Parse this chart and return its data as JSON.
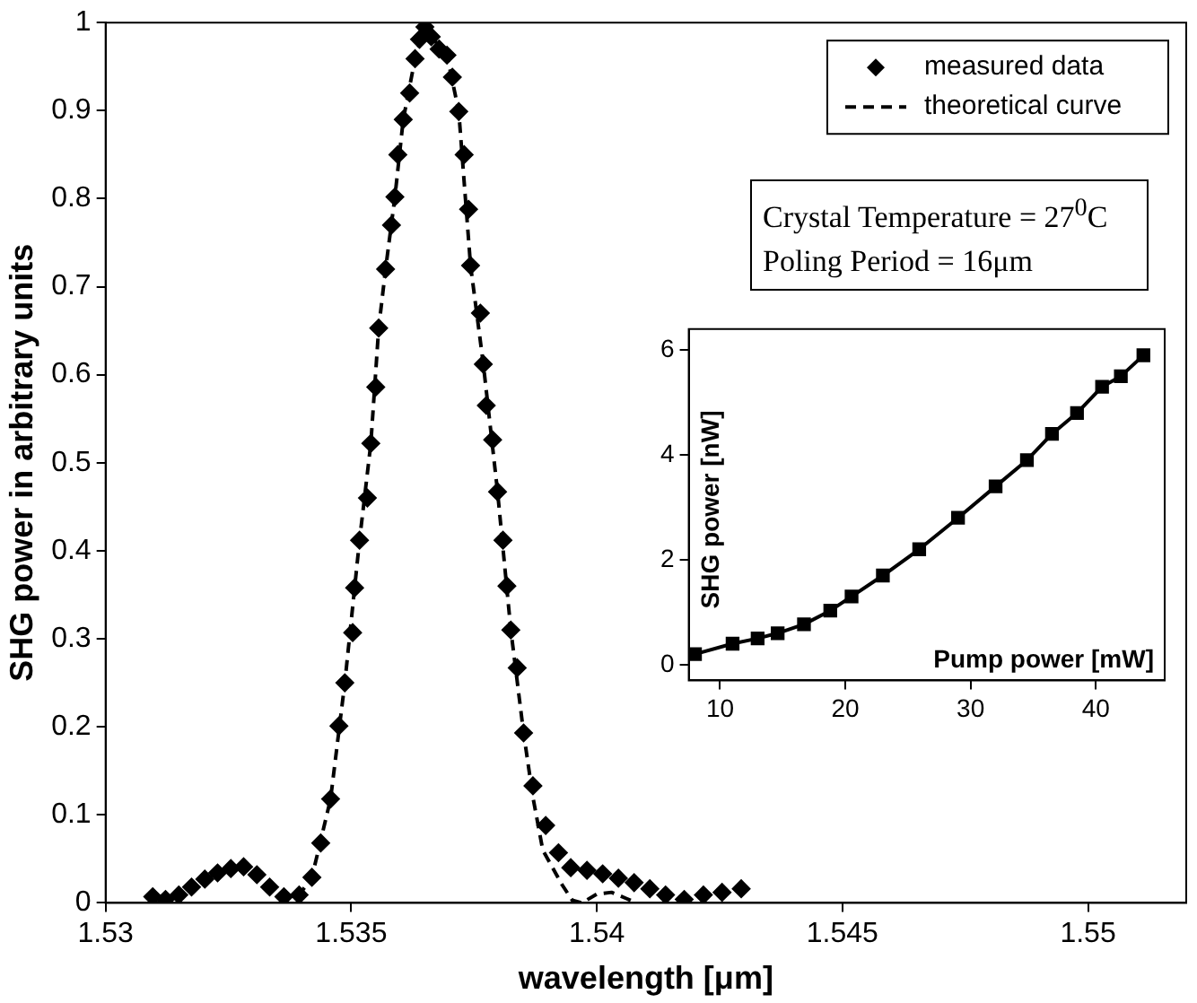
{
  "chart_data": [
    {
      "type": "line",
      "xlabel": "wavelength [μm]",
      "ylabel": "SHG power in arbitrary units",
      "xlim": [
        1.53,
        1.552
      ],
      "ylim": [
        0,
        1
      ],
      "xticks": [
        1.53,
        1.535,
        1.54,
        1.545,
        1.55
      ],
      "yticks": [
        0,
        0.1,
        0.2,
        0.3,
        0.4,
        0.5,
        0.6,
        0.7,
        0.8,
        0.9,
        1
      ],
      "grid": false,
      "legend": "top right",
      "annotations": [
        "Crystal Temperature = 27$^{0}$C",
        "Poling Period = 16μm"
      ],
      "series": [
        {
          "name": "measured data",
          "type": "scatter",
          "marker": "diamond",
          "color": "#000000",
          "x": [
            1.53096,
            1.53122,
            1.53149,
            1.53175,
            1.53202,
            1.53228,
            1.53255,
            1.53281,
            1.53308,
            1.53334,
            1.53363,
            1.53394,
            1.5342,
            1.53438,
            1.53458,
            1.53475,
            1.53487,
            1.53503,
            1.53507,
            1.53517,
            1.53533,
            1.5354,
            1.5355,
            1.53556,
            1.5357,
            1.53582,
            1.53589,
            1.53595,
            1.53606,
            1.53619,
            1.5363,
            1.53639,
            1.5365,
            1.53663,
            1.53679,
            1.53695,
            1.53706,
            1.53719,
            1.5373,
            1.53739,
            1.53743,
            1.53763,
            1.53769,
            1.53775,
            1.53788,
            1.53798,
            1.53809,
            1.53817,
            1.53825,
            1.53838,
            1.53851,
            1.5387,
            1.53896,
            1.53922,
            1.53947,
            1.5398,
            1.54012,
            1.54044,
            1.54076,
            1.54108,
            1.5414,
            1.54178,
            1.54217,
            1.54255,
            1.54294
          ],
          "values": [
            0.007,
            0.004,
            0.009,
            0.018,
            0.027,
            0.034,
            0.039,
            0.041,
            0.032,
            0.018,
            0.007,
            0.009,
            0.029,
            0.068,
            0.118,
            0.201,
            0.25,
            0.307,
            0.358,
            0.412,
            0.46,
            0.522,
            0.586,
            0.653,
            0.72,
            0.77,
            0.802,
            0.85,
            0.89,
            0.92,
            0.959,
            0.981,
            0.995,
            0.984,
            0.97,
            0.963,
            0.938,
            0.899,
            0.85,
            0.788,
            0.724,
            0.67,
            0.612,
            0.565,
            0.526,
            0.467,
            0.412,
            0.36,
            0.31,
            0.267,
            0.193,
            0.133,
            0.088,
            0.057,
            0.04,
            0.037,
            0.033,
            0.028,
            0.023,
            0.016,
            0.009,
            0.004,
            0.009,
            0.012,
            0.016
          ]
        },
        {
          "name": "theoretical curve",
          "type": "line",
          "line_style": "dashed",
          "marker": "none",
          "color": "#000000",
          "x": [
            1.53096,
            1.53149,
            1.53202,
            1.53255,
            1.53281,
            1.53308,
            1.53334,
            1.53363,
            1.53394,
            1.5342,
            1.53458,
            1.53487,
            1.53517,
            1.5354,
            1.53556,
            1.5357,
            1.53589,
            1.53606,
            1.5363,
            1.5365,
            1.53663,
            1.53695,
            1.53719,
            1.53743,
            1.53769,
            1.53798,
            1.53825,
            1.53851,
            1.5387,
            1.5389,
            1.5393,
            1.5395,
            1.5397,
            1.54,
            1.5403,
            1.5406,
            1.5408
          ],
          "values": [
            0.007,
            0.009,
            0.027,
            0.039,
            0.041,
            0.032,
            0.018,
            0.007,
            0.009,
            0.029,
            0.118,
            0.25,
            0.412,
            0.522,
            0.653,
            0.72,
            0.802,
            0.89,
            0.959,
            0.995,
            0.984,
            0.963,
            0.899,
            0.724,
            0.612,
            0.467,
            0.31,
            0.193,
            0.12,
            0.06,
            0.02,
            0.003,
            0,
            0.01,
            0.012,
            0.005,
            0
          ]
        }
      ]
    },
    {
      "type": "line",
      "xlabel": "Pump power [mW]",
      "ylabel": "SHG power [nW]",
      "xlim": [
        7.5,
        45.5
      ],
      "ylim": [
        -0.3,
        6.4
      ],
      "xticks": [
        10,
        20,
        30,
        40
      ],
      "yticks": [
        0,
        2,
        4,
        6
      ],
      "grid": false,
      "legend": false,
      "marker": "square",
      "line_style": "solid",
      "x": [
        8,
        11,
        13,
        14.6,
        16.7,
        18.8,
        20.5,
        23,
        25.9,
        29,
        32,
        34.5,
        36.5,
        38.5,
        40.5,
        42,
        43.8
      ],
      "values": [
        0.2,
        0.4,
        0.5,
        0.6,
        0.77,
        1.03,
        1.3,
        1.7,
        2.2,
        2.8,
        3.4,
        3.9,
        4.4,
        4.8,
        5.3,
        5.5,
        5.9
      ],
      "color": "#000000"
    }
  ]
}
